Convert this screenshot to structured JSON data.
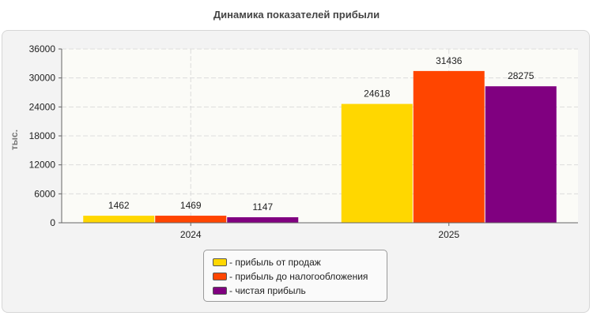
{
  "chart_data": {
    "type": "bar",
    "title": "Динамика показателей прибыли",
    "ylabel": "тыс.",
    "xlabel": "",
    "categories": [
      "2024",
      "2025"
    ],
    "series": [
      {
        "name": "прибыль от продаж",
        "color": "#FFD700",
        "values": [
          1462,
          24618
        ]
      },
      {
        "name": "прибыль до налогообложения",
        "color": "#FF4500",
        "values": [
          1469,
          31436
        ]
      },
      {
        "name": "чистая прибыль",
        "color": "#800080",
        "values": [
          1147,
          28275
        ]
      }
    ],
    "ylim": [
      0,
      36000
    ],
    "yticks": [
      0,
      6000,
      12000,
      18000,
      24000,
      30000,
      36000
    ],
    "grid": true,
    "data_labels": true,
    "legend_position": "bottom-center"
  },
  "legend": {
    "items": [
      {
        "label": "- прибыль от продаж",
        "color": "#FFD700"
      },
      {
        "label": "- прибыль до налогообложения",
        "color": "#FF4500"
      },
      {
        "label": "- чистая прибыль",
        "color": "#800080"
      }
    ]
  }
}
